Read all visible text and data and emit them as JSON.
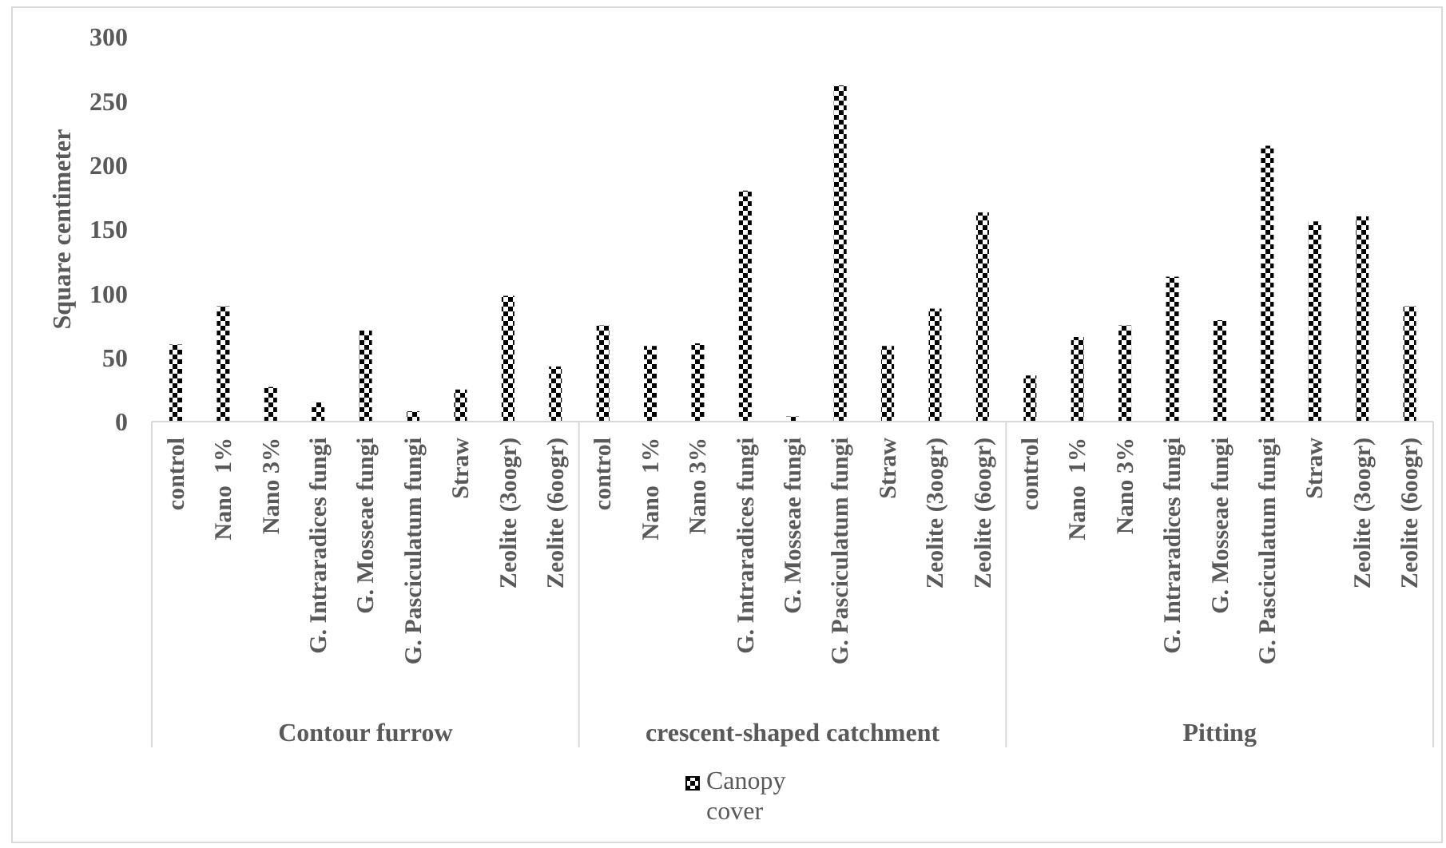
{
  "chart_data": {
    "type": "bar",
    "ylabel": "Square centimeter",
    "categories": [
      "control",
      "Nano  1%",
      "Nano 3%",
      "G. Intraradices fungi",
      "G. Mosseae fungi",
      "G. Pasciculatum fungi",
      "Straw",
      "Zeolite (3oogr)",
      "Zeolite (6oogr)",
      "control",
      "Nano  1%",
      "Nano 3%",
      "G. Intraradices fungi",
      "G. Mosseae fungi",
      "G. Pasciculatum fungi",
      "Straw",
      "Zeolite (3oogr)",
      "Zeolite (6oogr)",
      "control",
      "Nano  1%",
      "Nano 3%",
      "G. Intraradices fungi",
      "G. Mosseae fungi",
      "G. Pasciculatum fungi",
      "Straw",
      "Zeolite (3oogr)",
      "Zeolite (6oogr)"
    ],
    "series": [
      {
        "name": "Canopy cover",
        "color": "#000000",
        "values": [
          60,
          90,
          27,
          15,
          71,
          8,
          25,
          98,
          43,
          75,
          59,
          61,
          180,
          4,
          262,
          59,
          88,
          163,
          36,
          66,
          75,
          113,
          79,
          215,
          156,
          160,
          90
        ]
      }
    ],
    "ylim": [
      0,
      300
    ],
    "yticks": [
      0,
      50,
      100,
      150,
      200,
      250,
      300
    ],
    "legend": "bottom",
    "annotations": [
      "Contour furrow",
      "crescent-shaped catchment",
      "Pitting"
    ]
  }
}
